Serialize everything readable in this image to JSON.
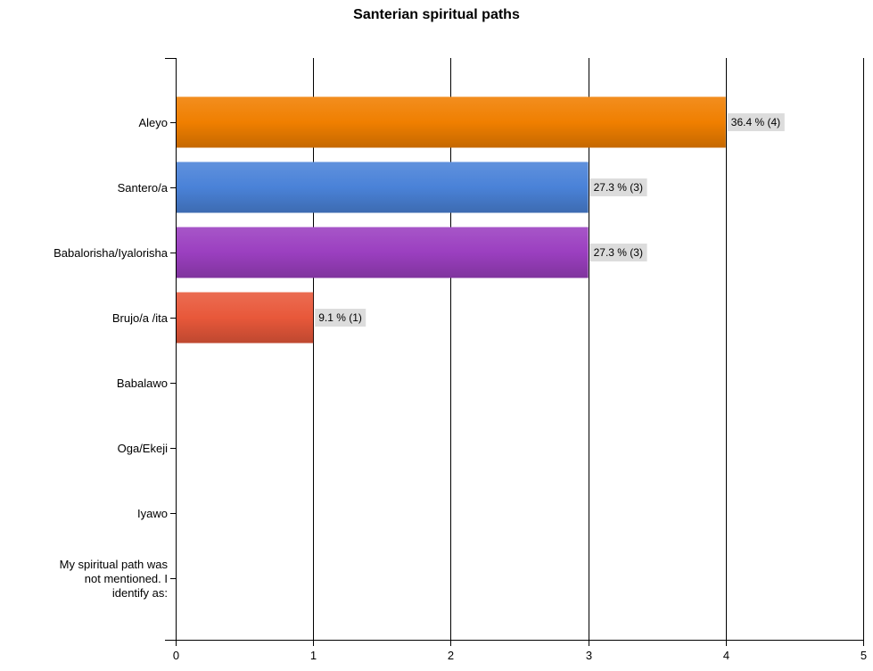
{
  "chart_data": {
    "type": "bar",
    "orientation": "horizontal",
    "title": "Santerian spiritual paths",
    "categories": [
      "Aleyo",
      "Santero/a",
      "Babalorisha/Iyalorisha",
      "Brujo/a /ita",
      "Babalawo",
      "Oga/Ekeji",
      "Iyawo",
      "My spiritual path was not mentioned. I identify as:"
    ],
    "values": [
      4,
      3,
      3,
      1,
      0,
      0,
      0,
      0
    ],
    "data_labels": [
      "36.4 % (4)",
      "27.3 % (3)",
      "27.3 % (3)",
      "9.1 % (1)",
      "",
      "",
      "",
      ""
    ],
    "bar_colors": [
      "#f07f00",
      "#4a82d8",
      "#9b3fc0",
      "#e8583a",
      "",
      "",
      "",
      ""
    ],
    "x_ticks": [
      0,
      1,
      2,
      3,
      4,
      5
    ],
    "xlim": [
      0,
      5
    ],
    "xlabel": "",
    "ylabel": "",
    "grid": true,
    "legend": "none"
  }
}
